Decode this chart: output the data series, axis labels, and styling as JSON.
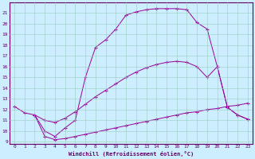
{
  "xlabel": "Windchill (Refroidissement éolien,°C)",
  "background_color": "#cceeff",
  "line_color": "#990099",
  "xlim_min": -0.5,
  "xlim_max": 23.5,
  "ylim_min": 8.8,
  "ylim_max": 22.0,
  "xticks": [
    0,
    1,
    2,
    3,
    4,
    5,
    6,
    7,
    8,
    9,
    10,
    11,
    12,
    13,
    14,
    15,
    16,
    17,
    18,
    19,
    20,
    21,
    22,
    23
  ],
  "yticks": [
    9,
    10,
    11,
    12,
    13,
    14,
    15,
    16,
    17,
    18,
    19,
    20,
    21
  ],
  "curve1_x": [
    0,
    1,
    2,
    3,
    4,
    5,
    6,
    7,
    8,
    9,
    10,
    11,
    12,
    13,
    14,
    15,
    16,
    17,
    18,
    19,
    20,
    21,
    22,
    23
  ],
  "curve1_y": [
    12.3,
    11.7,
    11.5,
    10.0,
    9.5,
    10.3,
    11.0,
    15.0,
    17.8,
    18.5,
    19.5,
    20.8,
    21.1,
    21.3,
    21.4,
    21.4,
    21.4,
    21.3,
    20.1,
    19.5,
    16.0,
    12.2,
    11.5,
    11.1
  ],
  "curve2_x": [
    2,
    3,
    4,
    5,
    6,
    7,
    8,
    9,
    10,
    11,
    12,
    13,
    14,
    15,
    16,
    17,
    18,
    19,
    20,
    21,
    22,
    23
  ],
  "curve2_y": [
    11.5,
    11.0,
    10.8,
    11.2,
    11.8,
    12.5,
    13.2,
    13.8,
    14.4,
    15.0,
    15.5,
    15.9,
    16.2,
    16.4,
    16.5,
    16.4,
    16.0,
    15.0,
    16.0,
    12.2,
    11.5,
    11.1
  ],
  "curve3_x": [
    2,
    3,
    4,
    5,
    6,
    7,
    8,
    9,
    10,
    11,
    12,
    13,
    14,
    15,
    16,
    17,
    18,
    19,
    20,
    21,
    22,
    23
  ],
  "curve3_y": [
    11.5,
    9.5,
    9.2,
    9.3,
    9.5,
    9.7,
    9.9,
    10.1,
    10.3,
    10.5,
    10.7,
    10.9,
    11.1,
    11.3,
    11.5,
    11.7,
    11.8,
    12.0,
    12.1,
    12.3,
    12.4,
    12.6
  ]
}
